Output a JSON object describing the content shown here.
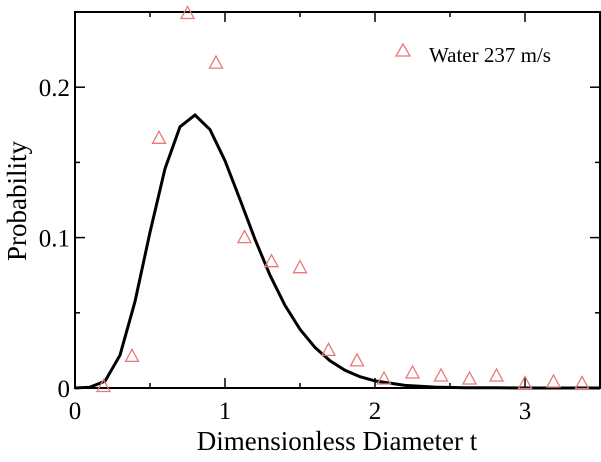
{
  "chart_data": {
    "type": "scatter",
    "xlabel": "Dimensionless Diameter t",
    "ylabel": "Probability",
    "xlim": [
      0,
      3.5
    ],
    "ylim": [
      0,
      0.25
    ],
    "x_ticks": [
      0,
      1,
      2,
      3
    ],
    "x_tick_labels": [
      "0",
      "1",
      "2",
      "3"
    ],
    "y_ticks": [
      0,
      0.1,
      0.2
    ],
    "y_tick_labels": [
      "0",
      "0.1",
      "0.2"
    ],
    "grid": false,
    "legend_position": "top-right",
    "series": [
      {
        "name": "Water 237 m/s",
        "kind": "scatter",
        "marker": "triangle-open",
        "color": "#e8787a",
        "x": [
          0.19,
          0.38,
          0.56,
          0.75,
          0.94,
          1.13,
          1.31,
          1.5,
          1.69,
          1.88,
          2.06,
          2.25,
          2.44,
          2.63,
          2.81,
          3.0,
          3.19,
          3.38
        ],
        "y": [
          0.001,
          0.021,
          0.166,
          0.249,
          0.216,
          0.1,
          0.084,
          0.08,
          0.025,
          0.018,
          0.006,
          0.01,
          0.008,
          0.006,
          0.008,
          0.003,
          0.004,
          0.003
        ]
      },
      {
        "kind": "line",
        "color": "#000000",
        "x": [
          0.0,
          0.1,
          0.2,
          0.3,
          0.4,
          0.5,
          0.6,
          0.7,
          0.8,
          0.9,
          1.0,
          1.1,
          1.2,
          1.3,
          1.4,
          1.5,
          1.6,
          1.7,
          1.8,
          1.9,
          2.0,
          2.2,
          2.4,
          2.6,
          2.8,
          3.0,
          3.2,
          3.5
        ],
        "y": [
          0.0,
          0.0005,
          0.0045,
          0.0218,
          0.0575,
          0.1035,
          0.1458,
          0.1737,
          0.1815,
          0.1718,
          0.1511,
          0.1253,
          0.0989,
          0.075,
          0.0549,
          0.039,
          0.0269,
          0.0181,
          0.0118,
          0.0075,
          0.0047,
          0.0017,
          0.0006,
          0.0002,
          0.0001,
          0.0,
          0.0,
          0.0
        ]
      }
    ]
  }
}
